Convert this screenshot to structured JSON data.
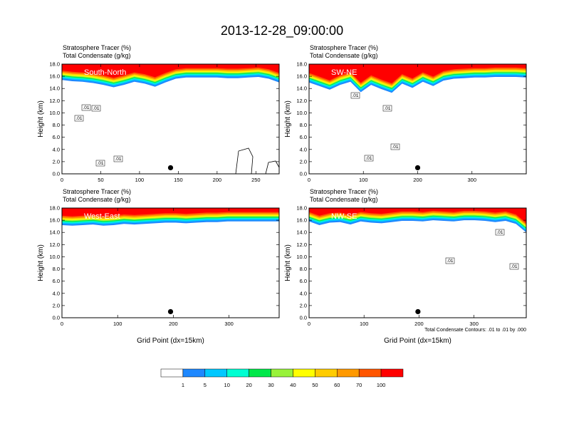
{
  "title": "2013-12-28_09:00:00",
  "chart_data": [
    {
      "type": "heatmap",
      "panel": "top-left",
      "region_label": "South-North",
      "title_lines": [
        "Stratosphere Tracer   (%)",
        "Total Condensate   (g/kg)"
      ],
      "xlabel": "",
      "ylabel": "Height (km)",
      "xlim": [
        0,
        280
      ],
      "ylim": [
        0,
        18
      ],
      "xticks": [
        0,
        50,
        100,
        150,
        200,
        250
      ],
      "yticks": [
        "0.0",
        "2.0",
        "4.0",
        "6.0",
        "8.0",
        "10.0",
        "12.0",
        "14.0",
        "16.0",
        "18.0"
      ],
      "marker": {
        "x": 140,
        "y": 1.0
      },
      "tracer_bottom_km": [
        15.4,
        15.2,
        15.1,
        14.9,
        14.6,
        14.2,
        14.6,
        15.1,
        14.8,
        14.3,
        15.0,
        15.6,
        15.8,
        15.8,
        15.8,
        15.8,
        15.7,
        15.7,
        15.8,
        15.9,
        15.6,
        15.0
      ],
      "contour_labels": [
        ".01",
        ".01",
        ".01",
        ".01",
        ".01"
      ]
    },
    {
      "type": "heatmap",
      "panel": "top-right",
      "region_label": "SW-NE",
      "title_lines": [
        "Stratosphere Tracer   (%)",
        "Total Condensate   (g/kg)"
      ],
      "xlabel": "",
      "ylabel": "Height (km)",
      "xlim": [
        0,
        400
      ],
      "ylim": [
        0,
        18
      ],
      "xticks": [
        0,
        100,
        200,
        300
      ],
      "yticks": [
        "0.0",
        "2.0",
        "4.0",
        "6.0",
        "8.0",
        "10.0",
        "12.0",
        "14.0",
        "16.0",
        "18.0"
      ],
      "marker": {
        "x": 200,
        "y": 1.0
      },
      "tracer_bottom_km": [
        15.0,
        14.4,
        13.8,
        14.6,
        15.1,
        13.4,
        14.6,
        13.9,
        13.3,
        14.8,
        14.1,
        15.1,
        14.4,
        15.3,
        15.6,
        15.7,
        15.8,
        15.8,
        15.9,
        15.9,
        15.9,
        15.8
      ],
      "contour_labels": [
        ".01",
        ".01",
        ".01",
        ".01"
      ]
    },
    {
      "type": "heatmap",
      "panel": "bottom-left",
      "region_label": "West-East",
      "title_lines": [
        "Stratosphere Tracer   (%)",
        "Total Condensate   (g/kg)"
      ],
      "xlabel": "Grid Point (dx=15km)",
      "ylabel": "Height (km)",
      "xlim": [
        0,
        390
      ],
      "ylim": [
        0,
        18
      ],
      "xticks": [
        0,
        100,
        200,
        300
      ],
      "yticks": [
        "0.0",
        "2.0",
        "4.0",
        "6.0",
        "8.0",
        "10.0",
        "12.0",
        "14.0",
        "16.0",
        "18.0"
      ],
      "marker": {
        "x": 195,
        "y": 1.0
      },
      "tracer_bottom_km": [
        15.2,
        15.1,
        15.2,
        15.3,
        15.1,
        15.2,
        15.4,
        15.3,
        15.4,
        15.5,
        15.6,
        15.6,
        15.5,
        15.6,
        15.7,
        15.7,
        15.8,
        15.8,
        15.8,
        15.8,
        15.8,
        15.8
      ],
      "contour_labels": []
    },
    {
      "type": "heatmap",
      "panel": "bottom-right",
      "region_label": "NW-SE",
      "title_lines": [
        "Stratosphere Tracer   (%)",
        "Total Condensate   (g/kg)"
      ],
      "xlabel": "Grid Point (dx=15km)",
      "ylabel": "Height (km)",
      "xlim": [
        0,
        395
      ],
      "ylim": [
        0,
        18
      ],
      "xticks": [
        0,
        100,
        200,
        300
      ],
      "yticks": [
        "0.0",
        "2.0",
        "4.0",
        "6.0",
        "8.0",
        "10.0",
        "12.0",
        "14.0",
        "16.0",
        "18.0"
      ],
      "marker": {
        "x": 198,
        "y": 1.0
      },
      "tracer_bottom_km": [
        15.8,
        15.2,
        15.6,
        15.7,
        15.3,
        15.8,
        15.6,
        15.5,
        15.7,
        15.9,
        15.9,
        15.8,
        16.0,
        15.9,
        15.8,
        16.0,
        16.0,
        15.9,
        15.7,
        15.9,
        15.4,
        14.0
      ],
      "contour_labels": [
        ".01",
        ".01",
        ".01"
      ],
      "contour_note": "Total Condensate Contours: .01 to .01 by .000"
    }
  ],
  "colorbar": {
    "labels": [
      "1",
      "5",
      "10",
      "20",
      "30",
      "40",
      "50",
      "60",
      "70",
      "100"
    ],
    "colors": [
      "#ffffff",
      "#1e88ff",
      "#00c8ff",
      "#00ffd2",
      "#00e84a",
      "#98f23a",
      "#ffff00",
      "#ffcc00",
      "#ff9900",
      "#ff5500",
      "#ff0000"
    ]
  }
}
